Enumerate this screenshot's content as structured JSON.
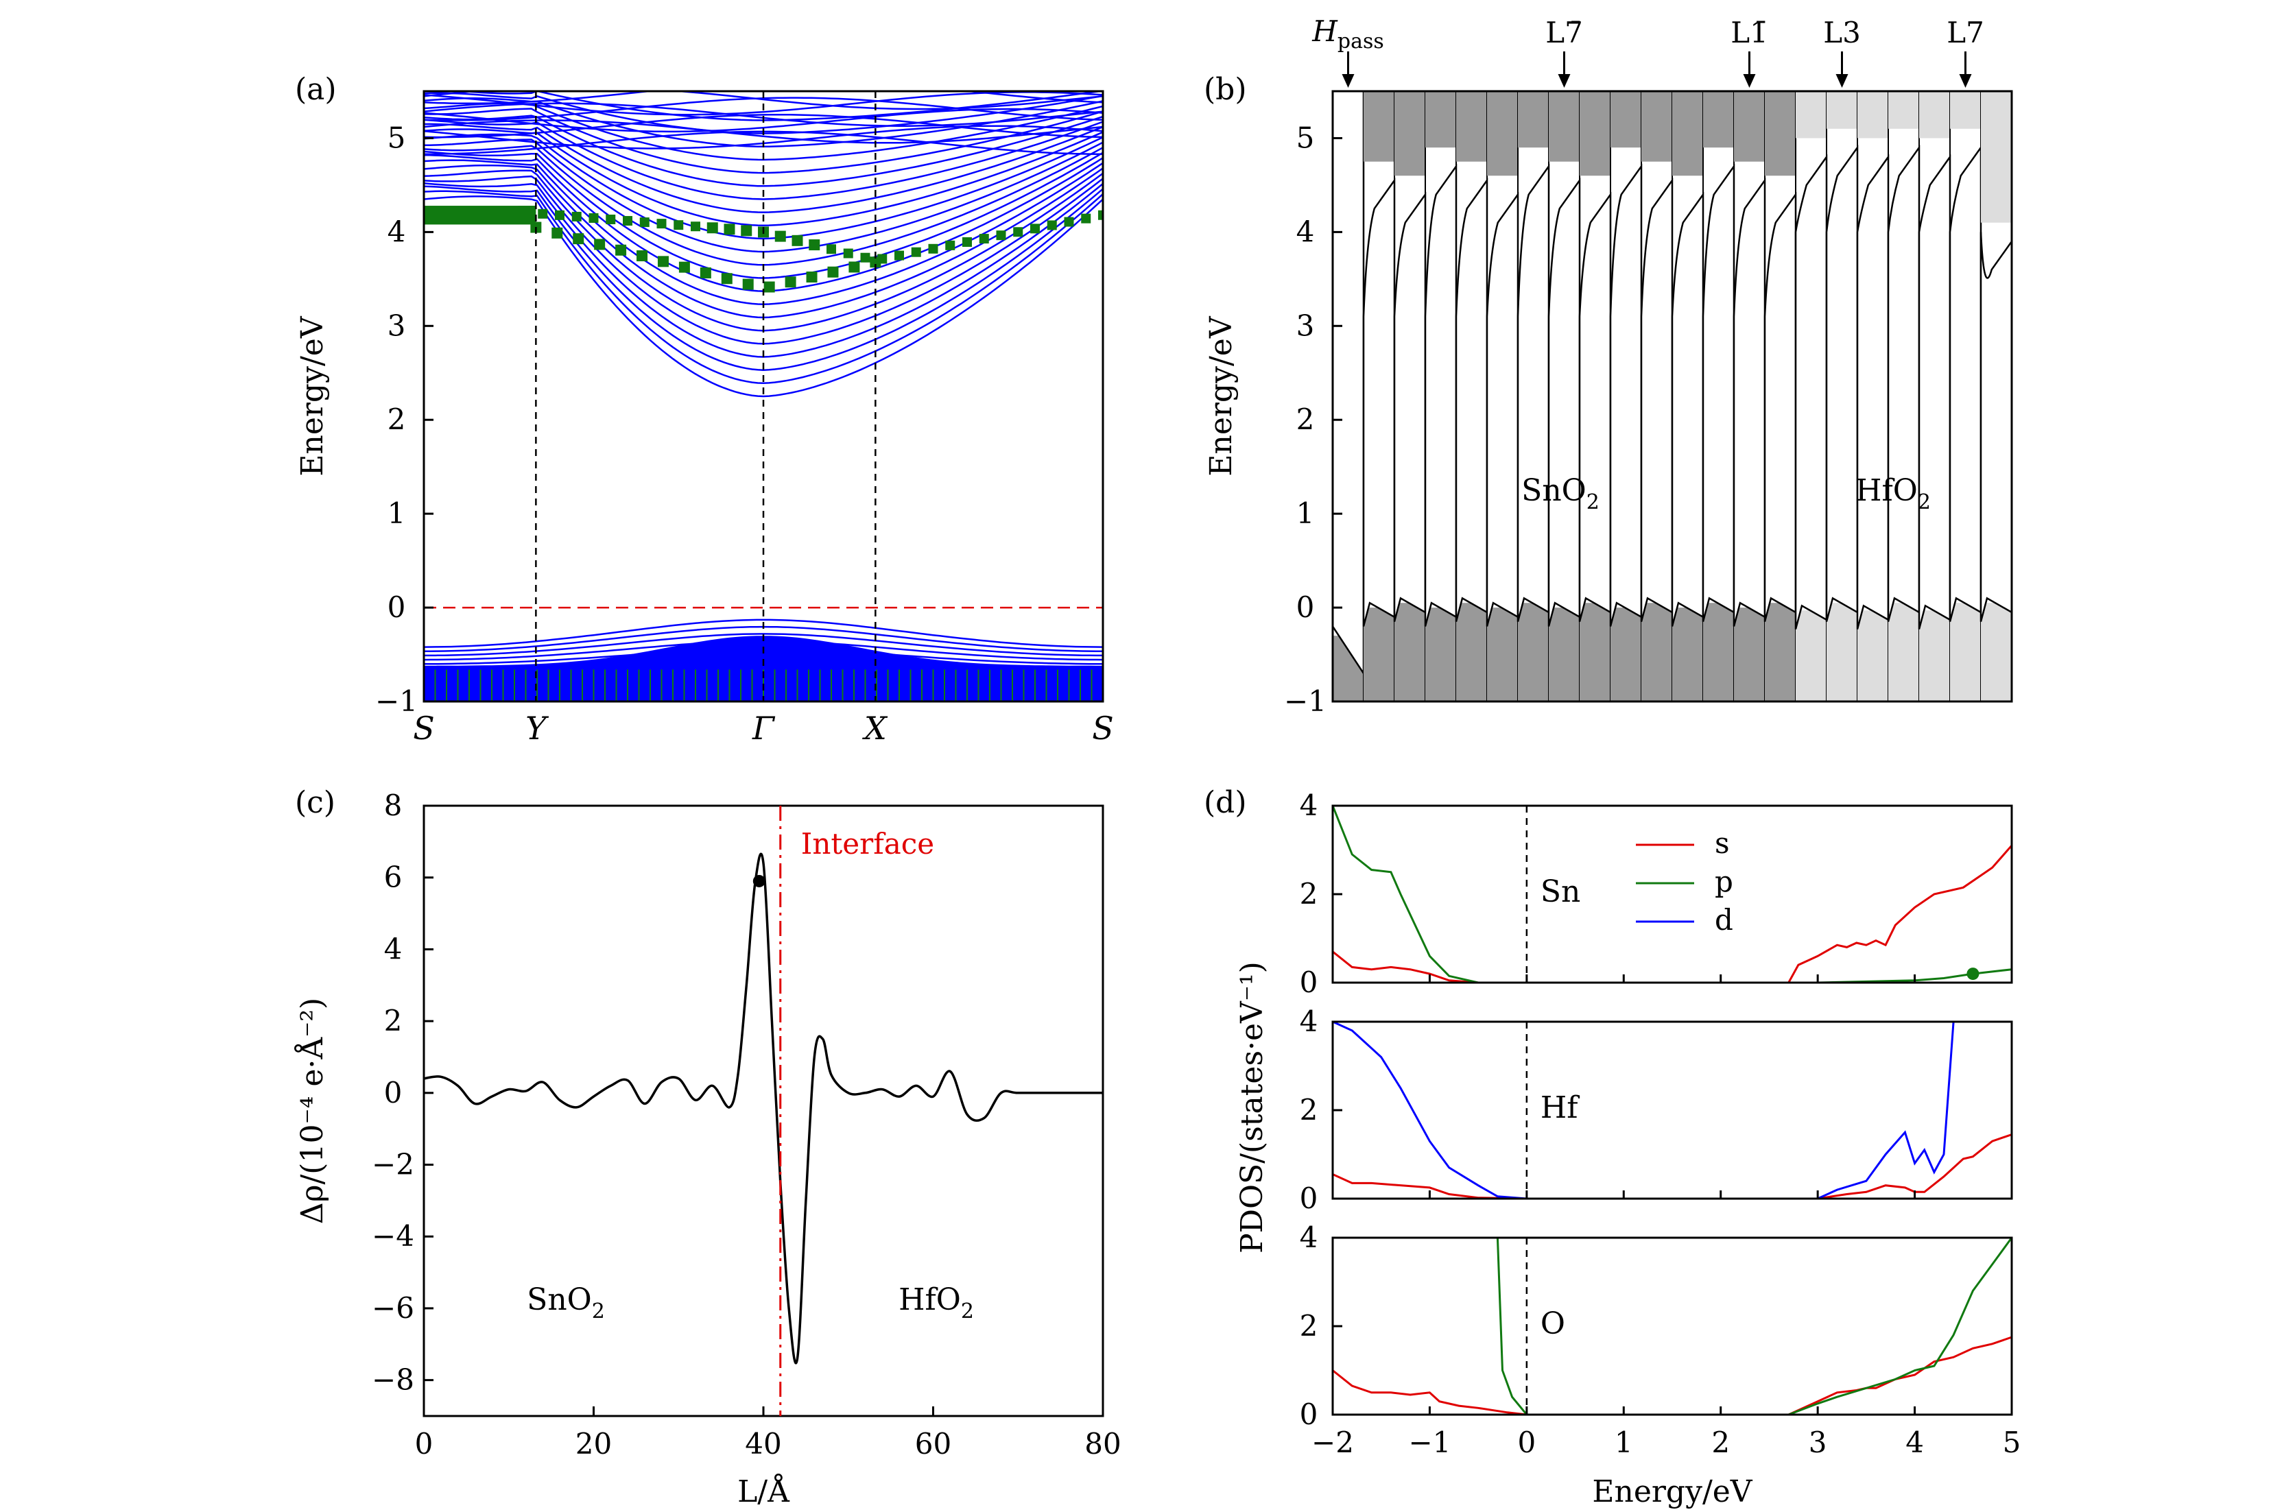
{
  "colors": {
    "band": "#0000ff",
    "proj": "#117a11",
    "vbm": "#e00000",
    "sn_fill": "#999999",
    "hf_fill": "#dddddd",
    "s": "#e00000",
    "p": "#117a11",
    "d": "#0000ff"
  },
  "panels": {
    "a": "(a)",
    "b": "(b)",
    "c": "(c)",
    "d": "(d)"
  },
  "chart_data": [
    {
      "id": "a",
      "type": "line",
      "title": "",
      "ylabel": "Energy/eV",
      "ylim": [
        -1,
        5.5
      ],
      "yticks": [
        -1,
        0,
        1,
        2,
        3,
        4,
        5
      ],
      "kpoints": [
        "S",
        "Y",
        "Γ",
        "X",
        "S"
      ],
      "kpath": [
        0,
        0.165,
        0.5,
        0.665,
        1
      ],
      "fermi_level": 0,
      "conduction_band_min": 2.25,
      "valence_band_max": -0.2,
      "projected_series_min": 3.4
    },
    {
      "id": "b",
      "type": "area",
      "title": "",
      "ylabel": "Energy/eV",
      "ylim": [
        -1,
        5.5
      ],
      "yticks": [
        -1,
        0,
        1,
        2,
        3,
        4,
        5
      ],
      "top_labels": [
        "Hpass",
        "L7̄",
        "L1̄",
        "L3",
        "L7"
      ],
      "region_labels": [
        "SnO2",
        "HfO2"
      ],
      "layers_sno2": 14,
      "layers_hfo2": 7,
      "cbm_approx": [
        4.3,
        3.9,
        3.5,
        3.0,
        2.8,
        3.3
      ],
      "vbm_approx": [
        -0.3,
        0.05,
        0.05,
        0.0,
        -0.1,
        0.05
      ]
    },
    {
      "id": "c",
      "type": "line",
      "title": "",
      "xlabel": "L/Å",
      "ylabel": "Δρ/(10⁻⁴ e·Å⁻²)",
      "xlim": [
        0,
        80
      ],
      "ylim": [
        -9,
        8
      ],
      "xticks": [
        0,
        20,
        40,
        60,
        80
      ],
      "yticks": [
        -8,
        -6,
        -4,
        -2,
        0,
        2,
        4,
        6,
        8
      ],
      "interface_x": 42,
      "annotation": "Interface",
      "region_labels": [
        "SnO2",
        "HfO2"
      ],
      "marker": {
        "x": 39.5,
        "y": 5.9
      },
      "series": [
        {
          "x": [
            0,
            2,
            4,
            6,
            8,
            10,
            12,
            14,
            16,
            18,
            20,
            22,
            24,
            26,
            28,
            30,
            32,
            34,
            36,
            37,
            38,
            39,
            40,
            41,
            42,
            43,
            44,
            45,
            46,
            47,
            48,
            50,
            52,
            54,
            56,
            58,
            60,
            62,
            64,
            66,
            68,
            70,
            74,
            80
          ],
          "y": [
            0.4,
            0.45,
            0.2,
            -0.3,
            -0.1,
            0.1,
            0.05,
            0.3,
            -0.2,
            -0.4,
            -0.1,
            0.2,
            0.35,
            -0.3,
            0.3,
            0.4,
            -0.2,
            0.2,
            -0.4,
            0.5,
            3.0,
            5.8,
            6.4,
            2.0,
            -2.5,
            -6.0,
            -7.4,
            -3.0,
            1.0,
            1.5,
            0.5,
            0,
            0,
            0.1,
            -0.1,
            0.2,
            -0.1,
            0.6,
            -0.6,
            -0.7,
            0.0,
            0.0,
            0.0,
            0.0
          ]
        }
      ]
    },
    {
      "id": "d",
      "type": "line",
      "title": "",
      "xlabel": "Energy/eV",
      "ylabel": "PDOS/(states·eV⁻¹)",
      "xlim": [
        -2,
        5
      ],
      "ylim": [
        0,
        4
      ],
      "xticks": [
        -2,
        -1,
        0,
        1,
        2,
        3,
        4,
        5
      ],
      "yticks": [
        0,
        2,
        4
      ],
      "legend": [
        "s",
        "p",
        "d"
      ],
      "subpanels": [
        {
          "name": "Sn",
          "series": [
            {
              "name": "s",
              "x": [
                -2,
                -1.8,
                -1.6,
                -1.4,
                -1.2,
                -1.0,
                -0.8,
                -0.5,
                0,
                1,
                2,
                2.7,
                2.8,
                3.0,
                3.2,
                3.3,
                3.4,
                3.5,
                3.6,
                3.7,
                3.8,
                4.0,
                4.2,
                4.5,
                4.8,
                5.0
              ],
              "y": [
                0.7,
                0.35,
                0.3,
                0.35,
                0.3,
                0.2,
                0.05,
                0,
                0,
                0,
                0,
                0,
                0.4,
                0.6,
                0.85,
                0.8,
                0.9,
                0.85,
                0.95,
                0.85,
                1.3,
                1.7,
                2.0,
                2.15,
                2.6,
                3.1
              ]
            },
            {
              "name": "p",
              "x": [
                -2,
                -1.8,
                -1.6,
                -1.4,
                -1.3,
                -1.0,
                -0.8,
                -0.5,
                0,
                2,
                3,
                4.0,
                4.3,
                4.6,
                5.0
              ],
              "y": [
                4.0,
                2.9,
                2.55,
                2.5,
                2.0,
                0.6,
                0.15,
                0.0,
                0,
                0,
                0,
                0.05,
                0.1,
                0.2,
                0.3
              ]
            }
          ],
          "marker": {
            "series": "p",
            "x": 4.6,
            "y": 0.2
          }
        },
        {
          "name": "Hf",
          "series": [
            {
              "name": "s",
              "x": [
                -2,
                -1.8,
                -1.6,
                -1.0,
                -0.8,
                -0.5,
                0,
                2,
                3.0,
                3.3,
                3.5,
                3.7,
                3.9,
                4.0,
                4.1,
                4.3,
                4.5,
                4.6,
                4.8,
                5.0
              ],
              "y": [
                0.55,
                0.35,
                0.35,
                0.25,
                0.1,
                0.02,
                0,
                0,
                0,
                0.1,
                0.15,
                0.3,
                0.25,
                0.15,
                0.15,
                0.5,
                0.9,
                0.95,
                1.3,
                1.45
              ]
            },
            {
              "name": "d",
              "x": [
                -2,
                -1.8,
                -1.6,
                -1.5,
                -1.3,
                -1.0,
                -0.8,
                -0.5,
                -0.3,
                0,
                2,
                3.0,
                3.2,
                3.5,
                3.7,
                3.9,
                4.0,
                4.1,
                4.2,
                4.3,
                4.4
              ],
              "y": [
                4.0,
                3.8,
                3.4,
                3.2,
                2.5,
                1.3,
                0.7,
                0.3,
                0.05,
                0,
                0,
                0,
                0.2,
                0.4,
                1.0,
                1.5,
                0.8,
                1.1,
                0.6,
                1.0,
                4.0
              ]
            }
          ]
        },
        {
          "name": "O",
          "series": [
            {
              "name": "s",
              "x": [
                -2,
                -1.8,
                -1.6,
                -1.4,
                -1.2,
                -1.0,
                -0.9,
                -0.7,
                -0.5,
                -0.2,
                0,
                2,
                2.7,
                3.0,
                3.2,
                3.4,
                3.5,
                3.6,
                3.8,
                4.0,
                4.2,
                4.4,
                4.6,
                4.8,
                5.0
              ],
              "y": [
                1.0,
                0.65,
                0.5,
                0.5,
                0.45,
                0.5,
                0.3,
                0.2,
                0.15,
                0.05,
                0,
                0,
                0,
                0.3,
                0.5,
                0.55,
                0.6,
                0.6,
                0.8,
                0.9,
                1.2,
                1.3,
                1.5,
                1.6,
                1.75
              ]
            },
            {
              "name": "p",
              "x": [
                -0.3,
                -0.25,
                -0.15,
                0,
                2,
                2.7,
                3.0,
                3.2,
                3.5,
                3.8,
                4.0,
                4.2,
                4.4,
                4.6,
                4.8,
                5.0
              ],
              "y": [
                4.0,
                1.0,
                0.4,
                0,
                0,
                0,
                0.25,
                0.4,
                0.6,
                0.8,
                1.0,
                1.1,
                1.8,
                2.8,
                3.4,
                4.0
              ]
            }
          ]
        }
      ]
    }
  ]
}
